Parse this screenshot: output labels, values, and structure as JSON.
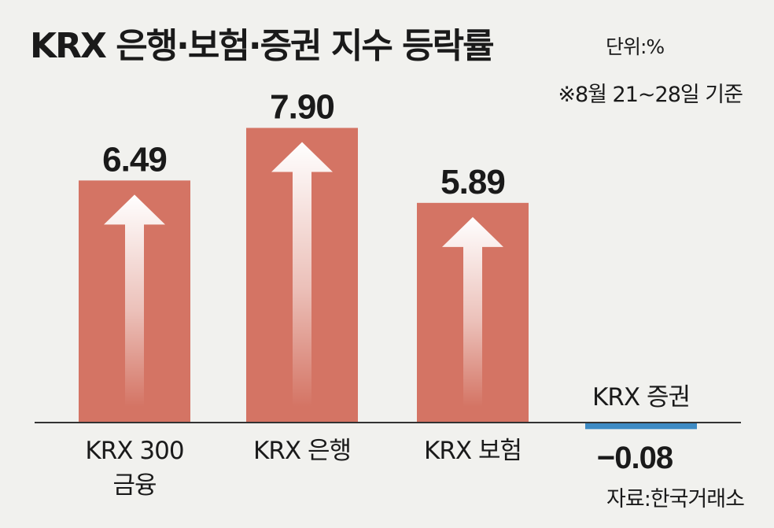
{
  "title": "KRX 은행·보험·증권 지수 등락률",
  "unit": "단위:%",
  "note": "※8월 21~28일 기준",
  "source": "자료:한국거래소",
  "colors": {
    "positive": "#d47464",
    "negative": "#3e8bc4",
    "arrow": "#ffffff",
    "axis": "#333333",
    "background": "#f1f1ee"
  },
  "chart_data": {
    "type": "bar",
    "categories": [
      [
        "KRX 300",
        "금융"
      ],
      [
        "KRX 은행"
      ],
      [
        "KRX 보험"
      ],
      [
        "KRX 증권"
      ]
    ],
    "values": [
      6.49,
      7.9,
      5.89,
      -0.08
    ],
    "value_labels": [
      "6.49",
      "7.90",
      "5.89",
      "−0.08"
    ],
    "ylim": [
      -0.5,
      9
    ],
    "grid": false
  }
}
